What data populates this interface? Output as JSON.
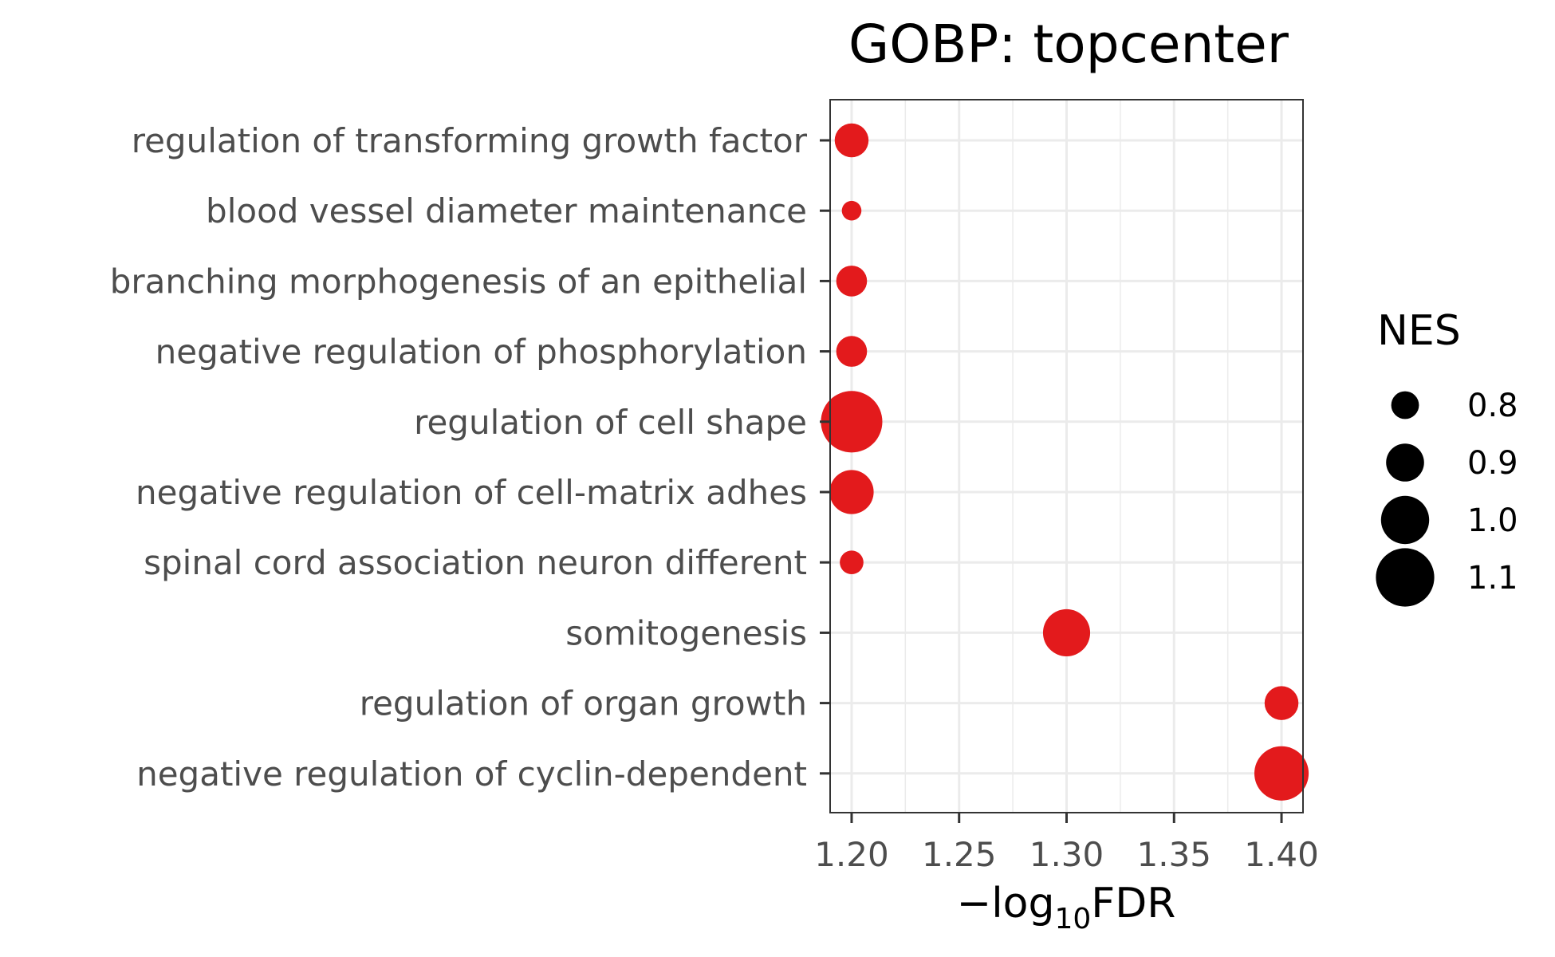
{
  "chart_data": {
    "type": "scatter",
    "title": "GOBP: topcenter",
    "xlabel": "-log10FDR",
    "xlabel_parts": {
      "minus": "−",
      "base": "log",
      "sub": "10",
      "rest": "FDR"
    },
    "xlim": [
      1.19,
      1.41
    ],
    "x_ticks": [
      1.2,
      1.25,
      1.3,
      1.35,
      1.4
    ],
    "x_tick_labels": [
      "1.20",
      "1.25",
      "1.30",
      "1.35",
      "1.40"
    ],
    "grid": true,
    "point_color": "#e31a1c",
    "categories": [
      "regulation of transforming growth factor",
      "blood vessel diameter maintenance",
      "branching morphogenesis of an epithelial",
      "negative regulation of phosphorylation",
      "regulation of cell shape",
      "negative regulation of cell-matrix adhes",
      "spinal cord association neuron different",
      "somitogenesis",
      "regulation of organ growth",
      "negative regulation of cyclin-dependent "
    ],
    "x": [
      1.2,
      1.2,
      1.2,
      1.2,
      1.2,
      1.2,
      1.2,
      1.3,
      1.4,
      1.4
    ],
    "size": [
      0.86,
      0.72,
      0.83,
      0.83,
      1.13,
      0.96,
      0.76,
      0.99,
      0.86,
      1.06
    ],
    "size_legend": {
      "title": "NES",
      "position": "right",
      "values": [
        0.8,
        0.9,
        1.0,
        1.1
      ],
      "labels": [
        "0.8",
        "0.9",
        "1.0",
        "1.1"
      ]
    }
  }
}
